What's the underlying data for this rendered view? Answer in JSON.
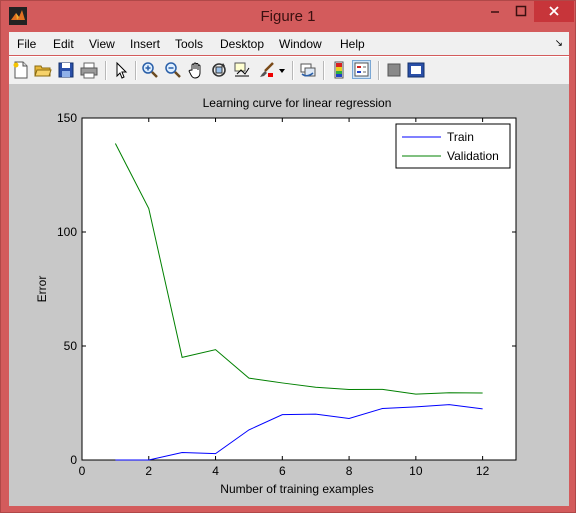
{
  "window": {
    "title": "Figure 1",
    "controls": {
      "minimize": "–",
      "maximize": "□",
      "close": "✕"
    }
  },
  "menubar": {
    "items": [
      "File",
      "Edit",
      "View",
      "Insert",
      "Tools",
      "Desktop",
      "Window",
      "Help"
    ],
    "dock_glyph": "↘"
  },
  "toolbar": {
    "buttons": [
      "new-figure-icon",
      "open-file-icon",
      "save-icon",
      "print-icon",
      "edit-plot-arrow-icon",
      "zoom-in-icon",
      "zoom-out-icon",
      "pan-hand-icon",
      "rotate-3d-icon",
      "data-cursor-icon",
      "brush-icon",
      "brush-dropdown-icon",
      "link-plot-icon",
      "insert-colorbar-icon",
      "insert-legend-icon",
      "hide-plot-tools-icon",
      "show-plot-tools-icon"
    ],
    "active": "insert-legend-icon"
  },
  "colors": {
    "window_frame": "#d35b5c",
    "figure_background": "#c8c8c8",
    "axes_background": "#ffffff",
    "train": "#0000ff",
    "validation": "#008000"
  },
  "chart_data": {
    "type": "line",
    "title": "Learning curve for linear regression",
    "xlabel": "Number of training examples",
    "ylabel": "Error",
    "xlim": [
      0,
      13
    ],
    "ylim": [
      0,
      150
    ],
    "xticks": [
      0,
      2,
      4,
      6,
      8,
      10,
      12
    ],
    "yticks": [
      0,
      50,
      100,
      150
    ],
    "grid": false,
    "legend_position": "top-right",
    "x": [
      1,
      2,
      3,
      4,
      5,
      6,
      7,
      8,
      9,
      10,
      11,
      12
    ],
    "series": [
      {
        "name": "Train",
        "color": "#0000ff",
        "values": [
          0.0,
          0.0,
          3.3,
          2.8,
          13.2,
          19.9,
          20.1,
          18.2,
          22.6,
          23.3,
          24.3,
          22.4
        ]
      },
      {
        "name": "Validation",
        "color": "#008000",
        "values": [
          138.8,
          110.3,
          45.0,
          48.4,
          35.9,
          33.8,
          31.9,
          30.9,
          31.0,
          28.9,
          29.5,
          29.4
        ]
      }
    ]
  }
}
